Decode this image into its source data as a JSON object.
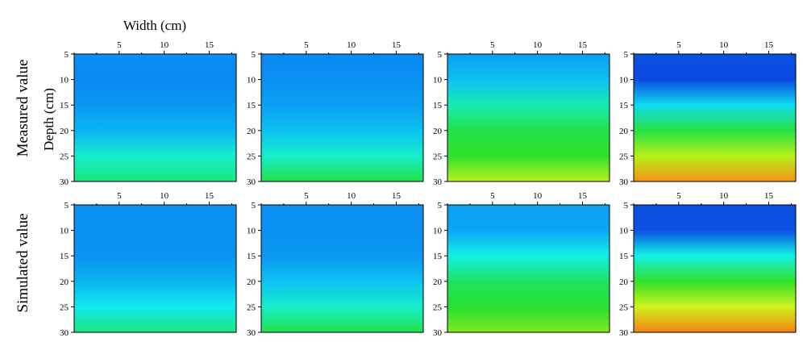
{
  "row_labels": [
    "Measured value",
    "Simulated value"
  ],
  "x_axis_title": "Width (cm)",
  "y_axis_title": "Depth (cm)",
  "chart_data": {
    "type": "heatmap",
    "rows": [
      "Measured value",
      "Simulated value"
    ],
    "xlabel": "Width (cm)",
    "ylabel": "Depth (cm)",
    "x_ticks": [
      5,
      10,
      15
    ],
    "y_ticks": [
      5,
      10,
      15,
      20,
      25,
      30
    ],
    "xlim": [
      0,
      18
    ],
    "ylim": [
      5,
      30
    ],
    "y_inverted": true,
    "x_axis_position": "top",
    "colormap": [
      "#0a2bd8",
      "#0a7df0",
      "#0aa8f4",
      "#12f2ee",
      "#1fe25a",
      "#2ae02a",
      "#bff21a",
      "#f6f41e",
      "#f58a14",
      "#e02a0a"
    ],
    "depth_profiles": {
      "depths": [
        5,
        10,
        15,
        20,
        25,
        30
      ],
      "note_values": "normalized color level 0 (blue) to 1 (red) along depth",
      "panels": [
        {
          "row": 0,
          "col": 0,
          "levels": [
            0.16,
            0.14,
            0.18,
            0.24,
            0.36,
            0.42
          ]
        },
        {
          "row": 0,
          "col": 1,
          "levels": [
            0.14,
            0.16,
            0.2,
            0.26,
            0.36,
            0.48
          ]
        },
        {
          "row": 0,
          "col": 2,
          "levels": [
            0.2,
            0.26,
            0.38,
            0.48,
            0.56,
            0.66
          ]
        },
        {
          "row": 0,
          "col": 3,
          "levels": [
            0.05,
            0.04,
            0.3,
            0.5,
            0.66,
            0.88
          ]
        },
        {
          "row": 1,
          "col": 0,
          "levels": [
            0.16,
            0.16,
            0.17,
            0.24,
            0.32,
            0.42
          ]
        },
        {
          "row": 1,
          "col": 1,
          "levels": [
            0.16,
            0.16,
            0.18,
            0.26,
            0.36,
            0.48
          ]
        },
        {
          "row": 1,
          "col": 2,
          "levels": [
            0.2,
            0.22,
            0.34,
            0.44,
            0.54,
            0.62
          ]
        },
        {
          "row": 1,
          "col": 3,
          "levels": [
            0.05,
            0.05,
            0.34,
            0.56,
            0.7,
            0.9
          ]
        }
      ]
    }
  }
}
